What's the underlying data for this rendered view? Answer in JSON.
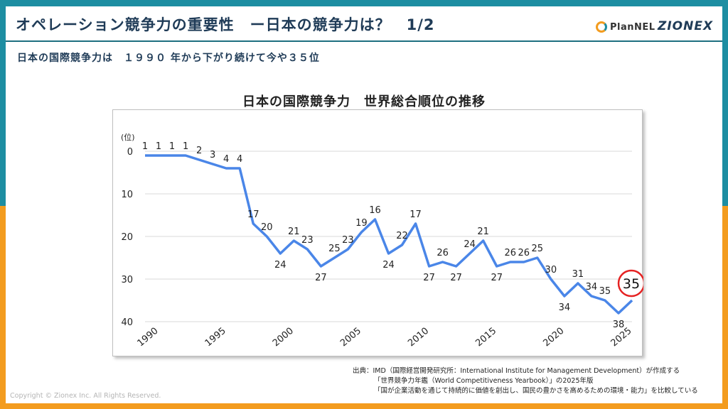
{
  "header": {
    "title": "オペレーション競争力の重要性　ー日本の競争力は？　1/2",
    "subtitle": "日本の国際競争力は　１９９０ 年から下がり続けて今や３５位",
    "logo_plannel": "PlanNEL",
    "logo_zionex": "ZIONEX"
  },
  "chart_data": {
    "type": "line",
    "title": "日本の国際競争力　世界総合順位の推移",
    "ylabel": "(位)",
    "xlabel": "",
    "ylim": [
      0,
      40
    ],
    "y_inverted": true,
    "yticks": [
      0,
      10,
      20,
      30,
      40
    ],
    "xticks": [
      1990,
      1995,
      2000,
      2005,
      2010,
      2015,
      2020,
      2025
    ],
    "grid": true,
    "line_color": "#4a86e8",
    "highlight_color": "#e52222",
    "series": [
      {
        "x": [
          1989,
          1990,
          1991,
          1992,
          1993,
          1994,
          1995,
          1996,
          1997,
          1998,
          1999,
          2000,
          2001,
          2002,
          2003,
          2004,
          2005,
          2006,
          2007,
          2008,
          2009,
          2010,
          2011,
          2012,
          2013,
          2014,
          2015,
          2016,
          2017,
          2018,
          2019,
          2020,
          2021,
          2022,
          2023,
          2024,
          2025
        ],
        "values": [
          1,
          1,
          1,
          1,
          2,
          3,
          4,
          4,
          17,
          20,
          24,
          21,
          23,
          27,
          25,
          23,
          19,
          16,
          24,
          22,
          17,
          27,
          26,
          27,
          24,
          21,
          27,
          26,
          26,
          25,
          30,
          34,
          31,
          34,
          35,
          38,
          35
        ]
      }
    ],
    "highlight": {
      "x": 2025,
      "value": 35,
      "label": "35"
    }
  },
  "source": {
    "line1": "出典：IMD（国際経営開発研究所：International Institute for Management Development）が作成する",
    "line2": "「世界競争力年鑑（World Competitiveness Yearbook）」の2025年版",
    "line3": "「国が企業活動を通じて持続的に価値を創出し、国民の豊かさを高めるための環境・能力」を比較している"
  },
  "footer": {
    "copyright": "Copyright © Zionex Inc. All Rights Reserved."
  }
}
